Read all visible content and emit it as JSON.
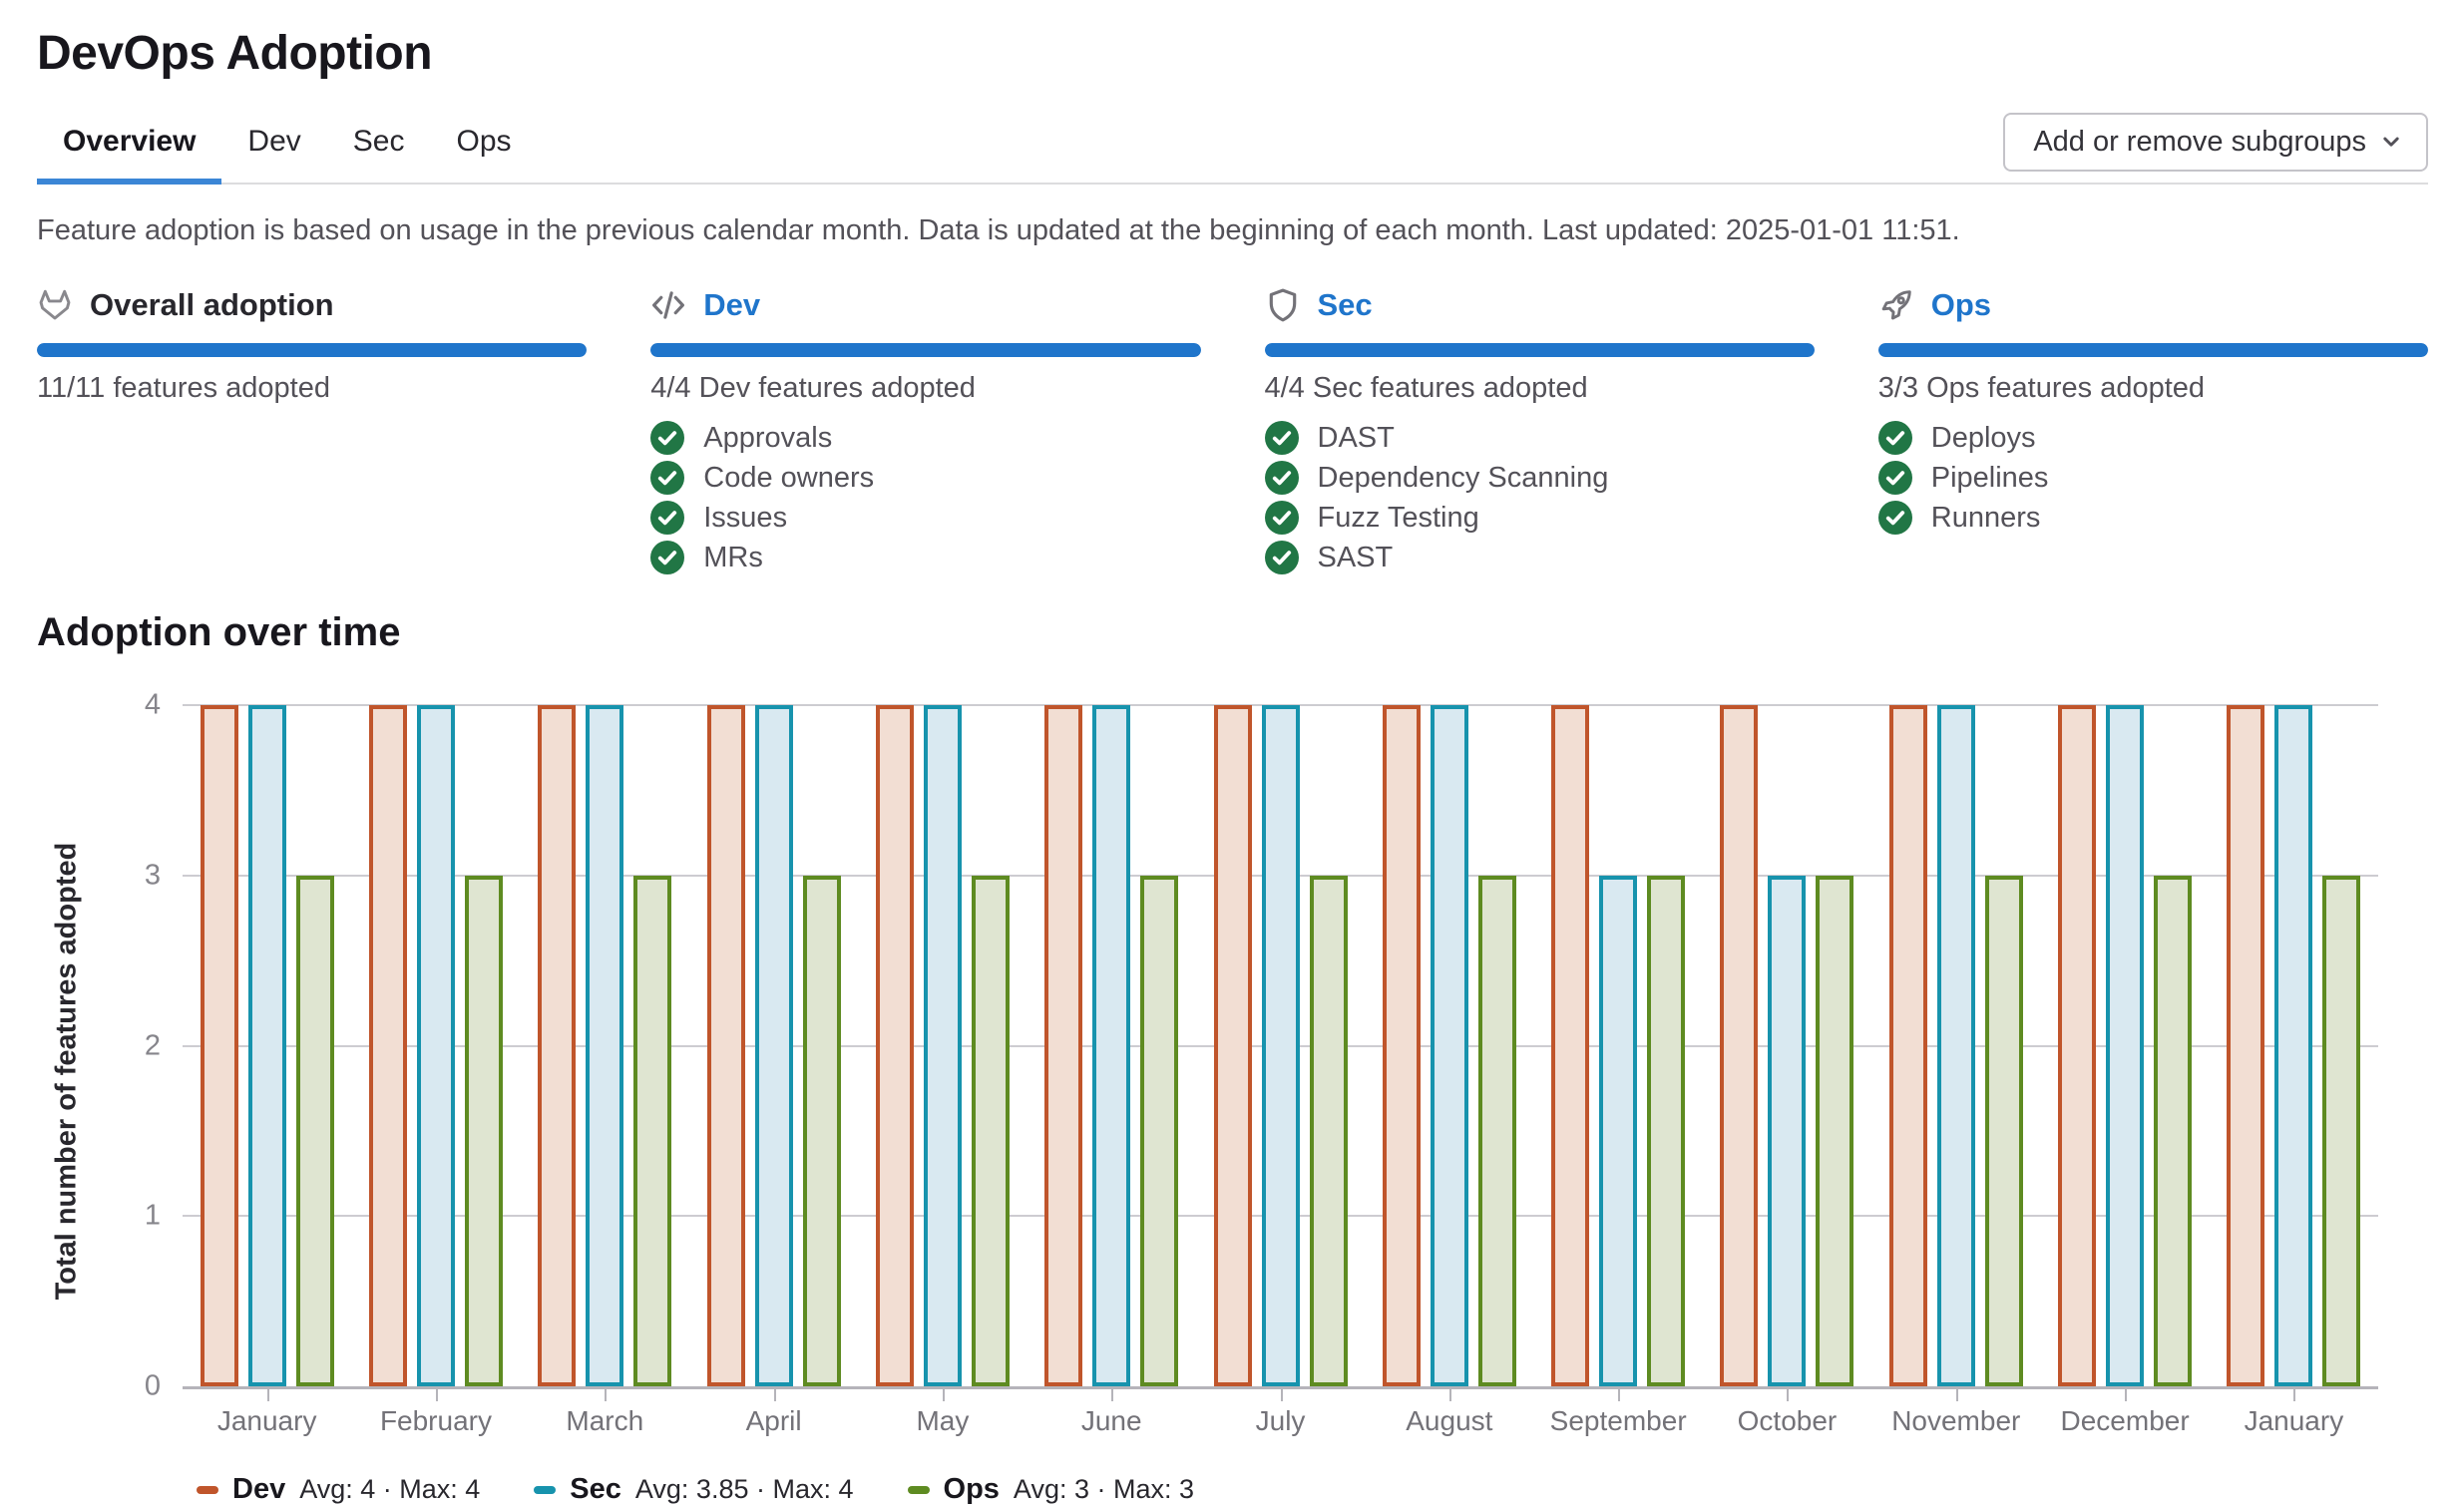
{
  "page": {
    "title": "DevOps Adoption"
  },
  "tabs": [
    {
      "label": "Overview",
      "active": true
    },
    {
      "label": "Dev",
      "active": false
    },
    {
      "label": "Sec",
      "active": false
    },
    {
      "label": "Ops",
      "active": false
    }
  ],
  "toolbar": {
    "subgroups_button_label": "Add or remove subgroups"
  },
  "info_text": "Feature adoption is based on usage in the previous calendar month. Data is updated at the beginning of each month. Last updated: 2025-01-01 11:51.",
  "sections": [
    {
      "icon": "tanuki-icon",
      "title": "Overall adoption",
      "is_link": false,
      "progress_percent": 100,
      "subtitle": "11/11 features adopted",
      "features": []
    },
    {
      "icon": "code-icon",
      "title": "Dev",
      "is_link": true,
      "progress_percent": 100,
      "subtitle": "4/4 Dev features adopted",
      "features": [
        "Approvals",
        "Code owners",
        "Issues",
        "MRs"
      ]
    },
    {
      "icon": "shield-icon",
      "title": "Sec",
      "is_link": true,
      "progress_percent": 100,
      "subtitle": "4/4 Sec features adopted",
      "features": [
        "DAST",
        "Dependency Scanning",
        "Fuzz Testing",
        "SAST"
      ]
    },
    {
      "icon": "rocket-icon",
      "title": "Ops",
      "is_link": true,
      "progress_percent": 100,
      "subtitle": "3/3 Ops features adopted",
      "features": [
        "Deploys",
        "Pipelines",
        "Runners"
      ]
    }
  ],
  "chart": {
    "heading": "Adoption over time",
    "ylabel": "Total number of features adopted"
  },
  "chart_data": {
    "type": "bar",
    "title": "Adoption over time",
    "xlabel": "",
    "ylabel": "Total number of features adopted",
    "ylim": [
      0,
      4
    ],
    "yticks": [
      0,
      1,
      2,
      3,
      4
    ],
    "grid": true,
    "legend_position": "bottom",
    "categories": [
      "January",
      "February",
      "March",
      "April",
      "May",
      "June",
      "July",
      "August",
      "September",
      "October",
      "November",
      "December",
      "January"
    ],
    "series": [
      {
        "name": "Dev",
        "values": [
          4,
          4,
          4,
          4,
          4,
          4,
          4,
          4,
          4,
          4,
          4,
          4,
          4
        ],
        "avg": 4,
        "max": 4,
        "stats_label": "Avg: 4 · Max: 4",
        "border_color": "#c0552b",
        "fill_color": "#f2ded3"
      },
      {
        "name": "Sec",
        "values": [
          4,
          4,
          4,
          4,
          4,
          4,
          4,
          4,
          3,
          3,
          4,
          4,
          4
        ],
        "avg": 3.85,
        "max": 4,
        "stats_label": "Avg: 3.85 · Max: 4",
        "border_color": "#1793ad",
        "fill_color": "#d9e9f1"
      },
      {
        "name": "Ops",
        "values": [
          3,
          3,
          3,
          3,
          3,
          3,
          3,
          3,
          3,
          3,
          3,
          3,
          3
        ],
        "avg": 3,
        "max": 3,
        "stats_label": "Avg: 3 · Max: 3",
        "border_color": "#5e8b21",
        "fill_color": "#dfe5d1"
      }
    ]
  },
  "colors": {
    "accent_blue": "#1f75cb",
    "check_green": "#217645",
    "tab_indicator": "#3b86d6"
  }
}
